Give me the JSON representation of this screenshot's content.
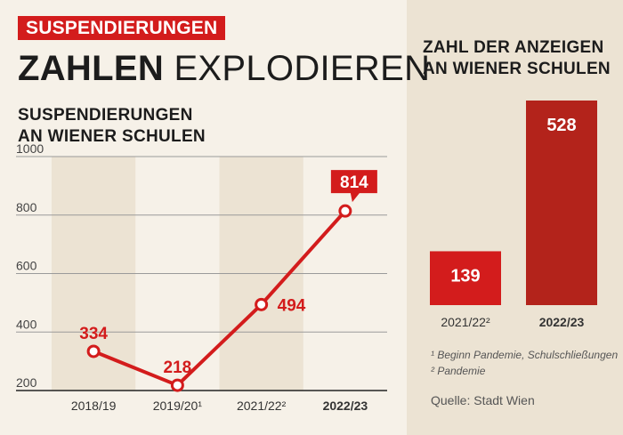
{
  "kicker": "SUSPENDIERUNGEN",
  "headline": {
    "bold": "ZAHLEN",
    "light": "EXPLODIEREN"
  },
  "colors": {
    "accent": "#d31c1c",
    "accent_dark": "#b3231b",
    "band": "#ece3d3"
  },
  "chart_data": [
    {
      "type": "line",
      "title_lines": [
        "SUSPENDIERUNGEN",
        "AN WIENER SCHULEN"
      ],
      "categories": [
        "2018/19",
        "2019/20¹",
        "2021/22²",
        "2022/23"
      ],
      "highlight_category": "2022/23",
      "values": [
        334,
        218,
        494,
        814
      ],
      "value_labels": [
        "334",
        "218",
        "494",
        "814"
      ],
      "highlight_value": "814",
      "ylim": [
        200,
        1000
      ],
      "yticks": [
        "1000",
        "800",
        "600",
        "400",
        "200"
      ],
      "ytick_values": [
        1000,
        800,
        600,
        400,
        200
      ],
      "grid": true
    },
    {
      "type": "bar",
      "title_lines": [
        "ZAHL DER ANZEIGEN",
        "AN WIENER SCHULEN"
      ],
      "categories": [
        "2021/22²",
        "2022/23"
      ],
      "values": [
        139,
        528
      ],
      "value_labels": [
        "139",
        "528"
      ]
    }
  ],
  "footnotes": [
    "¹ Beginn Pandemie, Schulschließungen",
    "² Pandemie"
  ],
  "source": "Quelle: Stadt Wien"
}
